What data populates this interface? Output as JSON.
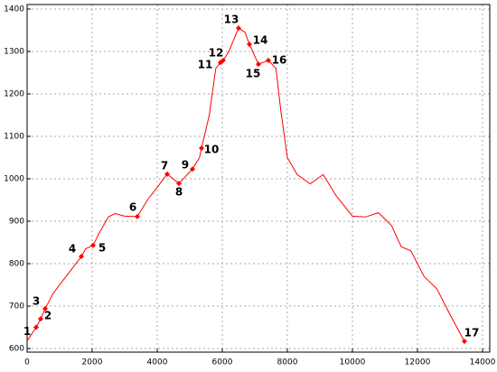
{
  "chart_data": {
    "type": "line",
    "x": [
      0,
      278,
      417,
      556,
      800,
      1100,
      1400,
      1667,
      1800,
      2028,
      2200,
      2500,
      2700,
      3000,
      3389,
      3700,
      4000,
      4306,
      4667,
      5083,
      5300,
      5361,
      5600,
      5800,
      5944,
      6028,
      6200,
      6500,
      6700,
      6833,
      7111,
      7417,
      7650,
      7800,
      8000,
      8300,
      8700,
      9100,
      9500,
      10000,
      10400,
      10800,
      11200,
      11500,
      11800,
      12200,
      12600,
      13000,
      13444
    ],
    "series": [
      {
        "color": "#ff0000",
        "values": [
          618,
          650,
          670,
          694,
          730,
          760,
          790,
          817,
          835,
          843,
          870,
          910,
          918,
          912,
          911,
          950,
          980,
          1011,
          989,
          1023,
          1050,
          1072,
          1150,
          1260,
          1274,
          1279,
          1300,
          1355,
          1345,
          1317,
          1270,
          1279,
          1260,
          1160,
          1050,
          1010,
          988,
          1010,
          960,
          912,
          910,
          920,
          890,
          840,
          830,
          770,
          740,
          680,
          617
        ]
      }
    ],
    "markers": {
      "color": "#ff0000",
      "labels": [
        "1",
        "2",
        "3",
        "4",
        "5",
        "6",
        "7",
        "8",
        "9",
        "10",
        "11",
        "12",
        "13",
        "14",
        "15",
        "16",
        "17"
      ],
      "x": [
        278,
        417,
        556,
        1667,
        2028,
        3389,
        4306,
        4667,
        5083,
        5361,
        5944,
        6028,
        6500,
        6833,
        7111,
        7417,
        13444
      ],
      "values": [
        650,
        670,
        694,
        817,
        843,
        911,
        1011,
        989,
        1023,
        1072,
        1274,
        1279,
        1355,
        1317,
        1270,
        1279,
        617
      ]
    },
    "xlim": [
      0,
      14000
    ],
    "xticks": [
      0,
      2000,
      4000,
      6000,
      8000,
      10000,
      12000,
      14000
    ],
    "ylim": [
      600,
      1400
    ],
    "yticks": [
      600,
      700,
      800,
      900,
      1000,
      1100,
      1200,
      1300,
      1400
    ],
    "grid": true
  }
}
